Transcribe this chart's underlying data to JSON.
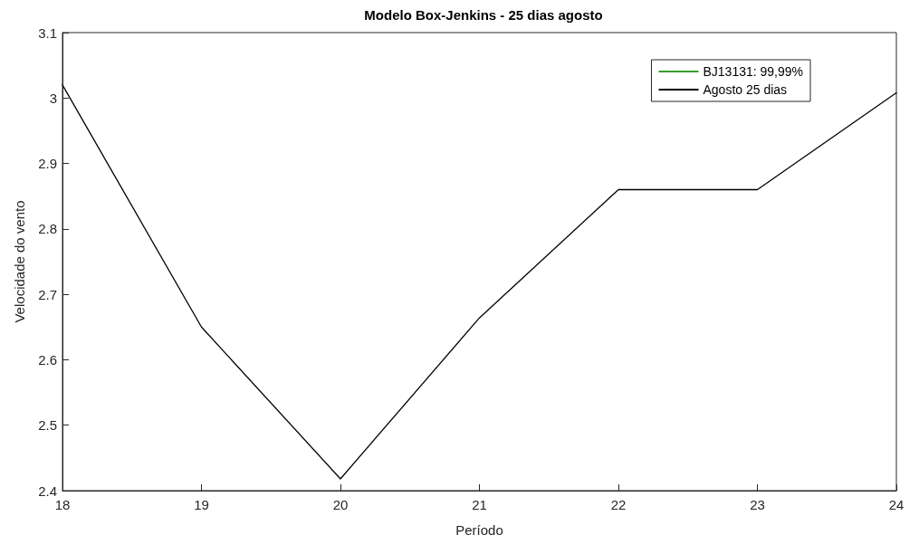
{
  "chart_data": {
    "type": "line",
    "title": "Modelo Box-Jenkins - 25 dias agosto",
    "xlabel": "Período",
    "ylabel": "Velocidade do vento",
    "x": [
      18,
      19,
      20,
      21,
      22,
      23,
      24
    ],
    "series": [
      {
        "name": "BJ13131: 99,99%",
        "color": "#33a02c",
        "values": [
          null,
          null,
          null,
          null,
          null,
          null,
          null
        ]
      },
      {
        "name": "Agosto 25 dias",
        "color": "#000000",
        "values": [
          3.02,
          2.65,
          2.418,
          2.664,
          2.86,
          2.86,
          3.008
        ]
      }
    ],
    "xlim": [
      18,
      24
    ],
    "xticks": [
      18,
      19,
      20,
      21,
      22,
      23,
      24
    ],
    "ylim": [
      2.4,
      3.1
    ],
    "yticks": [
      2.4,
      2.5,
      2.6,
      2.7,
      2.8,
      2.9,
      3,
      3.1
    ],
    "grid": false,
    "legend": "top right",
    "marker": "none",
    "line_style": "solid"
  }
}
